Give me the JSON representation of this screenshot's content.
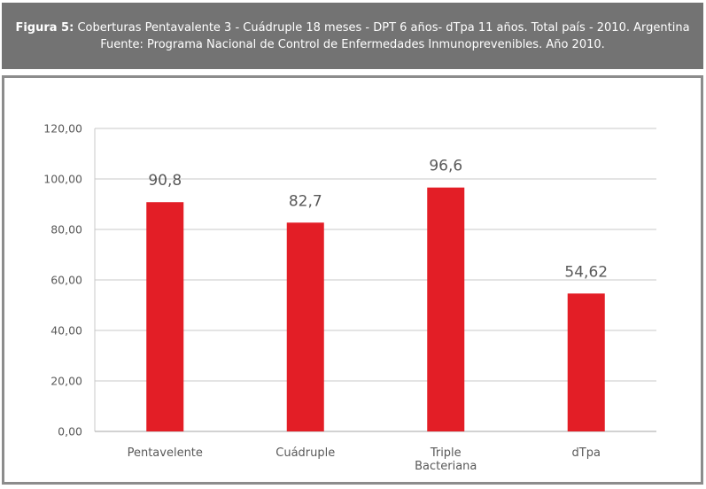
{
  "caption": {
    "label": "Figura 5:",
    "text": "Coberturas Pentavalente 3 - Cuádruple 18 meses - DPT 6 años- dTpa 11 años. Total país - 2010. Argentina",
    "source": "Fuente: Programa Nacional de Control de Enfermedades Inmunoprevenibles. Año 2010."
  },
  "chart_data": {
    "type": "bar",
    "title": "",
    "xlabel": "",
    "ylabel": "",
    "categories": [
      [
        "Pentavelente"
      ],
      [
        "Cuádruple"
      ],
      [
        "Triple",
        "Bacteriana"
      ],
      [
        "dTpa"
      ]
    ],
    "values": [
      90.8,
      82.7,
      96.6,
      54.62
    ],
    "value_labels": [
      "90,8",
      "82,7",
      "96,6",
      "54,62"
    ],
    "ylim": [
      0,
      120
    ],
    "yticks": [
      0,
      20,
      40,
      60,
      80,
      100,
      120
    ],
    "ytick_labels": [
      "0,00",
      "20,00",
      "40,00",
      "60,00",
      "80,00",
      "100,00",
      "120,00"
    ],
    "grid": true,
    "bar_color": "#e31e26",
    "grid_color": "#c8c8c8",
    "legend": "none"
  }
}
